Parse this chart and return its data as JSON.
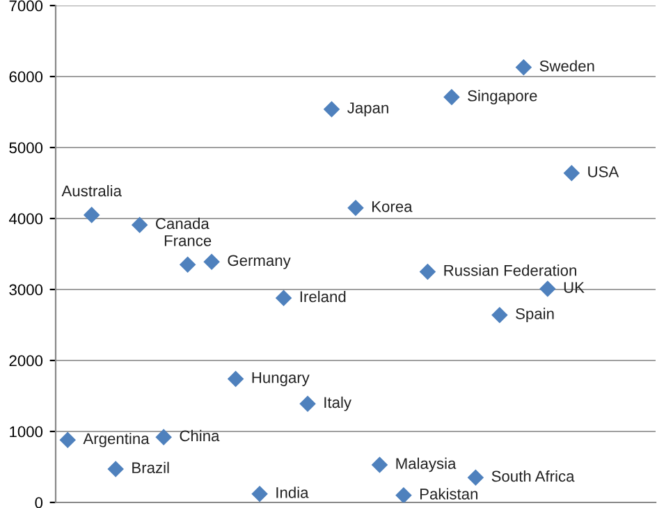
{
  "chart_data": {
    "type": "scatter",
    "categories": [
      null,
      null,
      null,
      null,
      null,
      null,
      null,
      null,
      null,
      null,
      null,
      null,
      null,
      null,
      null,
      null,
      null,
      null,
      null,
      null,
      null,
      null,
      null,
      null,
      null
    ],
    "series": [
      {
        "color": "#4f81bd",
        "values": [
          880,
          4050,
          470,
          3910,
          920,
          3350,
          3390,
          1740,
          120,
          2880,
          1390,
          5540,
          4150,
          530,
          100,
          3250,
          5710,
          350,
          2640,
          6130,
          3010,
          4640,
          null,
          null,
          null
        ],
        "value_labels": [
          "Argentina",
          "Australia",
          "Brazil",
          "Canada",
          "China",
          "France",
          "Germany",
          "Hungary",
          "India",
          "Ireland",
          "Italy",
          "Japan",
          "Korea",
          "Malaysia",
          "Pakistan",
          "Russian Federation",
          "Singapore",
          "South Africa",
          "Spain",
          "Sweden",
          "UK",
          "USA",
          null,
          null,
          null
        ]
      }
    ],
    "ylim": [
      0,
      7000
    ],
    "yticks": [
      0,
      1000,
      2000,
      3000,
      4000,
      5000,
      6000,
      7000
    ],
    "grid": "y",
    "marker": "diamond",
    "tick_labels": "y"
  }
}
